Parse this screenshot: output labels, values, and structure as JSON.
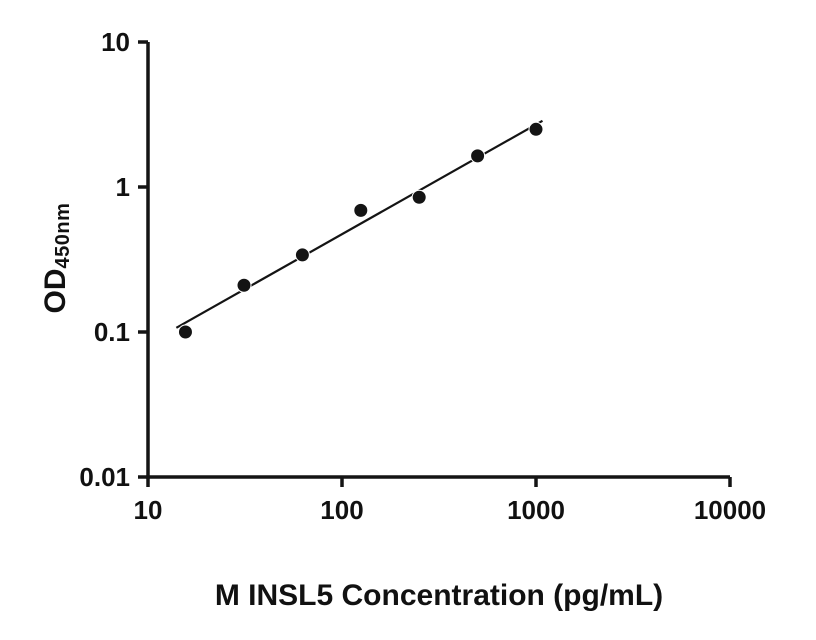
{
  "chart_data": {
    "type": "scatter",
    "title": "",
    "xlabel": "M INSL5 Concentration (pg/mL)",
    "ylabel": "OD",
    "ylabel_subscript": "450nm",
    "x_scale": "log",
    "y_scale": "log",
    "xlim": [
      10,
      10000
    ],
    "ylim": [
      0.01,
      10
    ],
    "x_ticks": [
      10,
      100,
      1000,
      10000
    ],
    "x_tick_labels": [
      "10",
      "100",
      "1000",
      "10000"
    ],
    "y_ticks": [
      0.01,
      0.1,
      1,
      10
    ],
    "y_tick_labels": [
      "0.01",
      "0.1",
      "1",
      "10"
    ],
    "x": [
      15.6,
      31.25,
      62.5,
      125,
      250,
      500,
      1000
    ],
    "y": [
      0.1,
      0.21,
      0.34,
      0.69,
      0.85,
      1.64,
      2.5
    ],
    "fit": "power-law-regression-line",
    "fit_x_range": [
      14,
      1080
    ],
    "legend": "none",
    "grid": "off",
    "marker": "filled-circle",
    "marker_radius": 7,
    "marker_color": "#141414",
    "line_color": "#141414",
    "axis_color": "#141414"
  }
}
